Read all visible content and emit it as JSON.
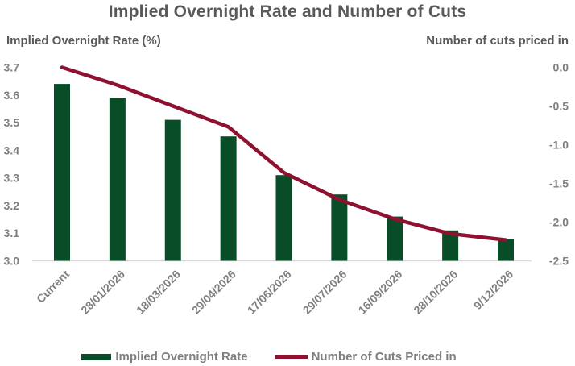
{
  "title": "Implied Overnight Rate and Number of Cuts",
  "left_axis_title": "Implied Overnight Rate (%)",
  "right_axis_title": "Number of cuts priced in",
  "legend": {
    "bar_label": "Implied Overnight Rate",
    "line_label": "Number of Cuts Priced in"
  },
  "colors": {
    "bar": "#084c28",
    "line": "#8e1230",
    "title_text": "#595959",
    "axis_header_text": "#595959",
    "tick_text": "#7f7f7f",
    "axis_line": "#d9d9d9",
    "background": "#ffffff"
  },
  "chart_data": {
    "type": "bar",
    "subtype": "bar-and-line-dual-axis",
    "title": "Implied Overnight Rate and Number of Cuts",
    "categories": [
      "Current",
      "28/01/2026",
      "18/03/2026",
      "29/04/2026",
      "17/06/2026",
      "29/07/2026",
      "16/09/2026",
      "28/10/2026",
      "9/12/2026"
    ],
    "series": [
      {
        "name": "Implied Overnight Rate",
        "type": "bar",
        "axis": "left",
        "values": [
          3.64,
          3.59,
          3.51,
          3.45,
          3.31,
          3.24,
          3.16,
          3.11,
          3.08
        ]
      },
      {
        "name": "Number of Cuts Priced in",
        "type": "line",
        "axis": "right",
        "values": [
          0.0,
          -0.23,
          -0.5,
          -0.77,
          -1.36,
          -1.71,
          -1.96,
          -2.15,
          -2.23
        ]
      }
    ],
    "left_axis": {
      "label": "Implied Overnight Rate (%)",
      "min": 3.0,
      "max": 3.7,
      "step": 0.1,
      "ticks": [
        "3.7",
        "3.6",
        "3.5",
        "3.4",
        "3.3",
        "3.2",
        "3.1",
        "3.0"
      ]
    },
    "right_axis": {
      "label": "Number of cuts priced in",
      "min": -2.5,
      "max": 0.0,
      "step": 0.5,
      "ticks": [
        "0.0",
        "-0.5",
        "-1.0",
        "-1.5",
        "-2.0",
        "-2.5"
      ]
    },
    "grid": false,
    "legend_position": "bottom",
    "x_labels_rotation_deg": -45
  }
}
